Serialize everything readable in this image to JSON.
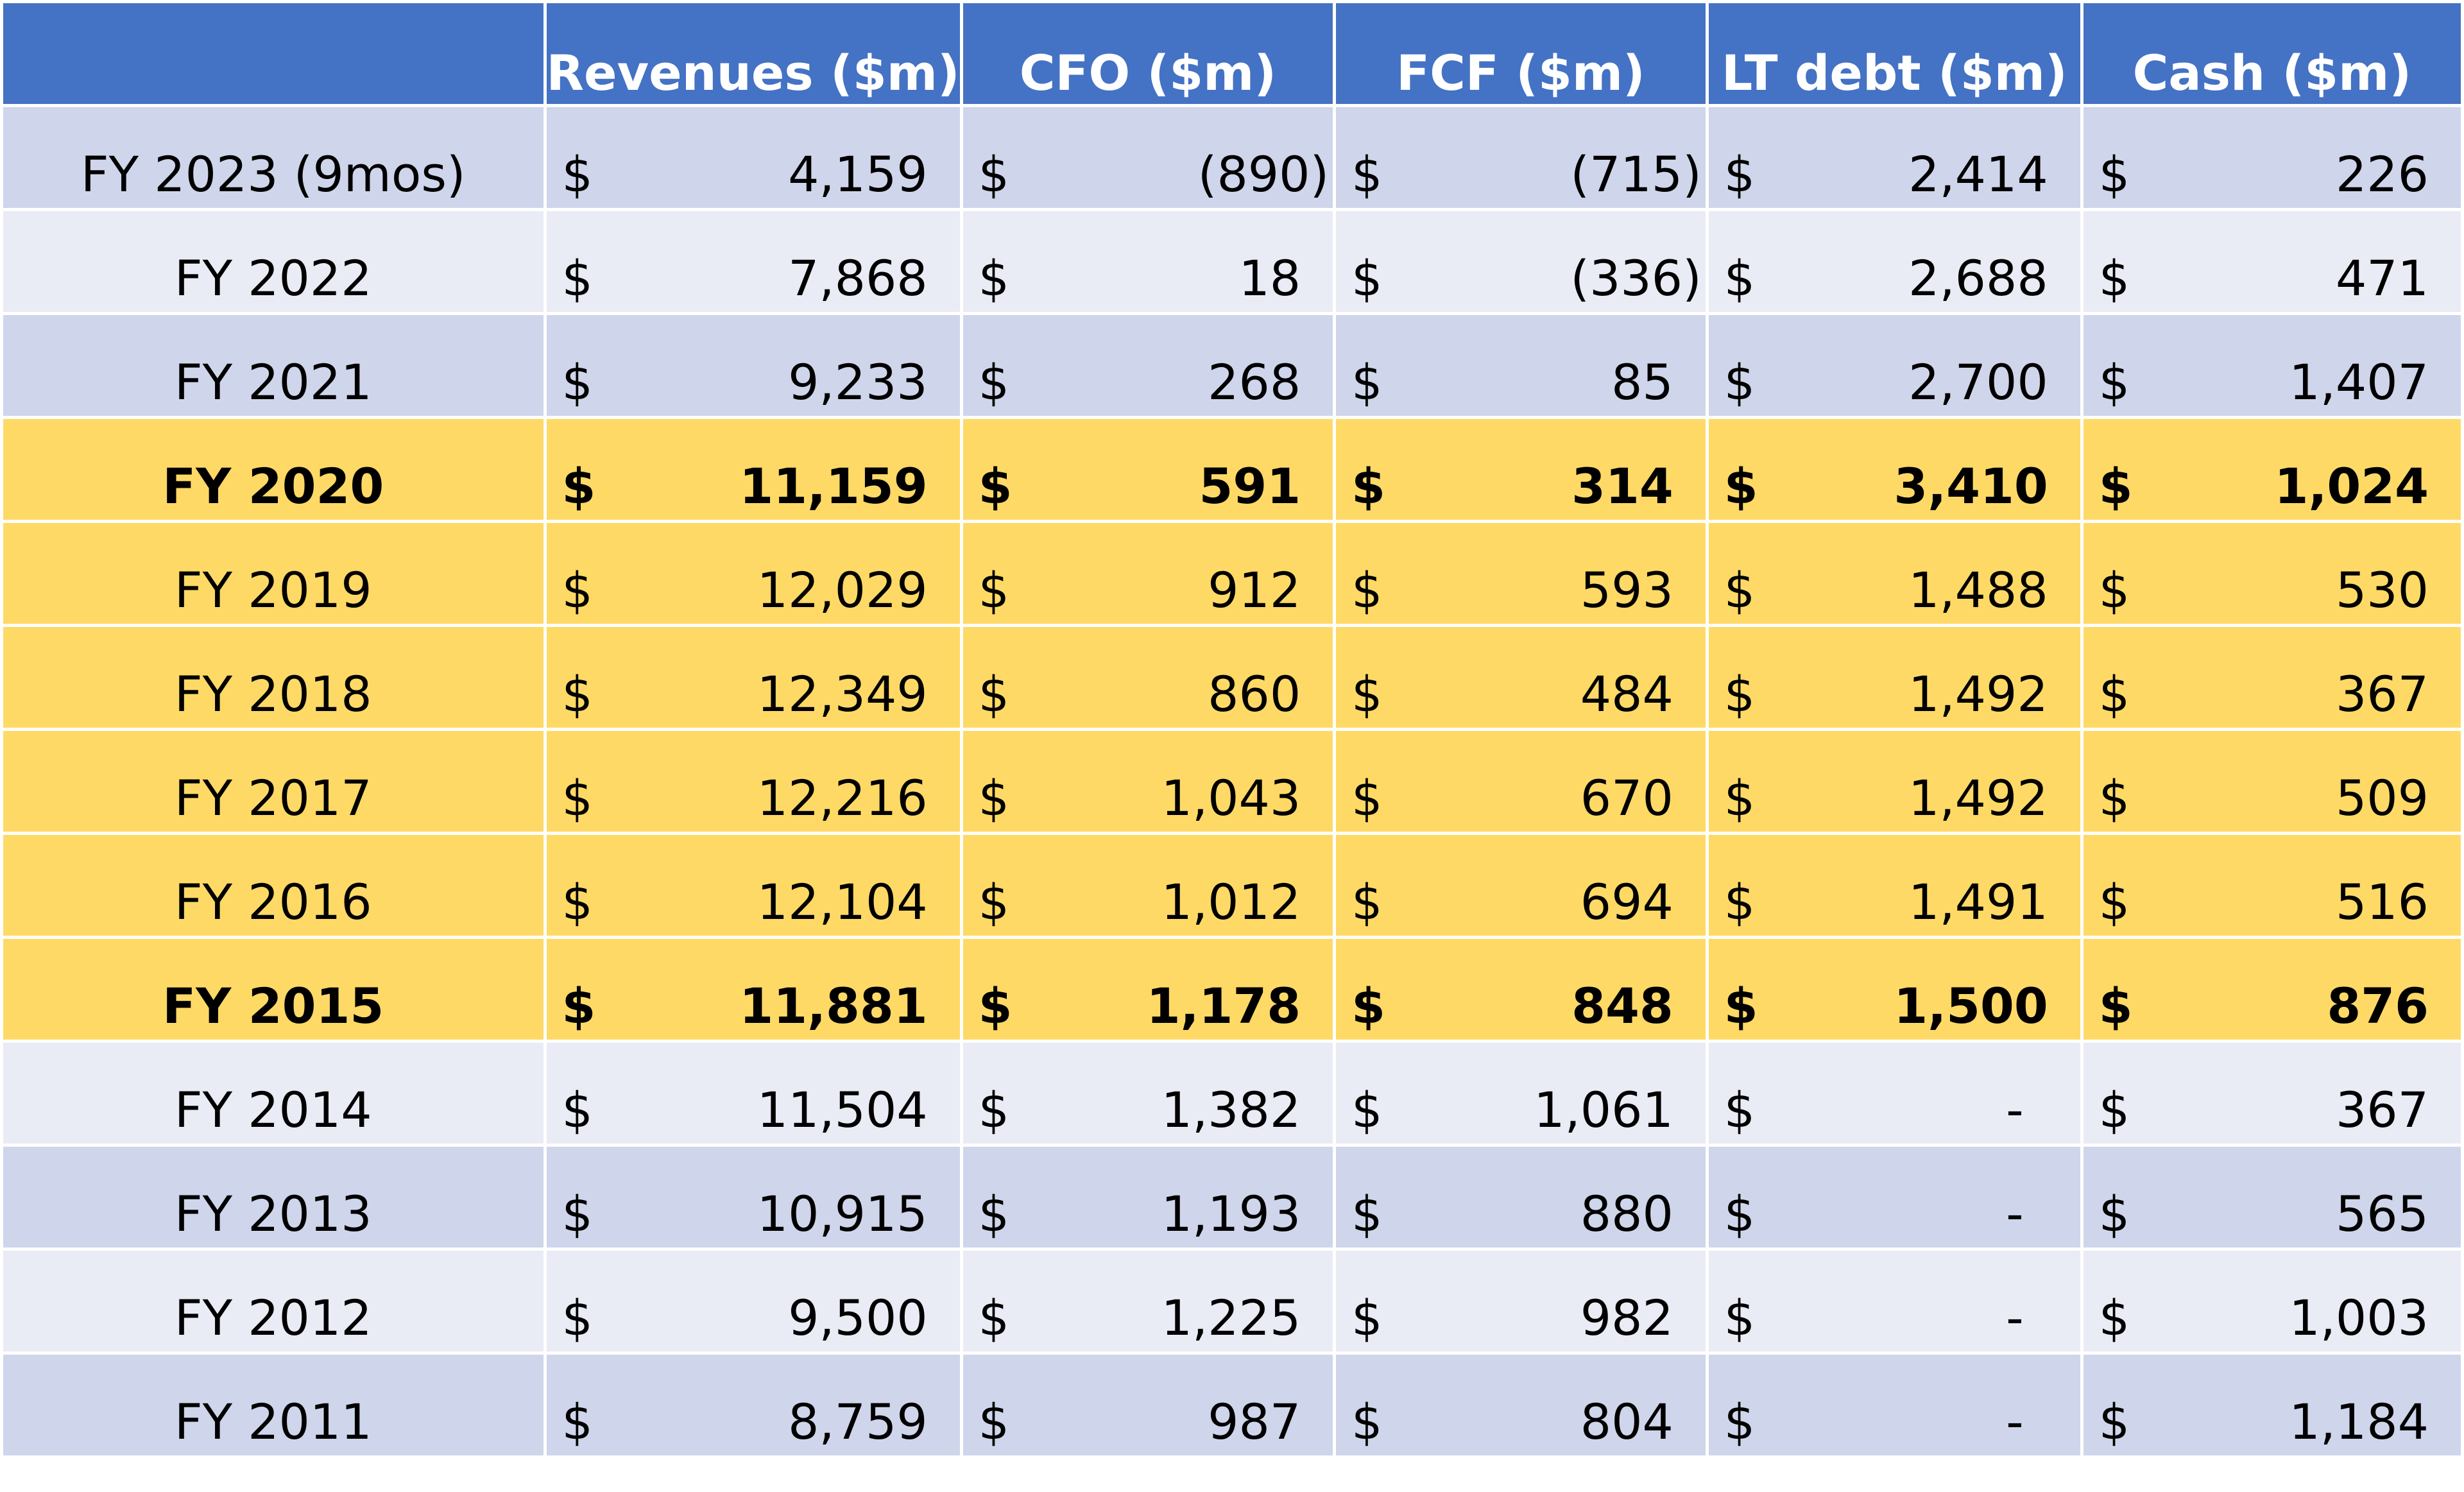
{
  "table": {
    "headers": [
      "",
      "Revenues ($m)",
      "CFO ($m)",
      "FCF ($m)",
      "LT debt ($m)",
      "Cash ($m)"
    ],
    "currency_symbol": "$",
    "rows": [
      {
        "label": "FY 2023 (9mos)",
        "style": "a",
        "bold": false,
        "values": [
          "4,159",
          "(890)",
          "(715)",
          "2,414",
          "226"
        ]
      },
      {
        "label": "FY 2022",
        "style": "b",
        "bold": false,
        "values": [
          "7,868",
          "18",
          "(336)",
          "2,688",
          "471"
        ]
      },
      {
        "label": "FY 2021",
        "style": "a",
        "bold": false,
        "values": [
          "9,233",
          "268",
          "85",
          "2,700",
          "1,407"
        ]
      },
      {
        "label": "FY 2020",
        "style": "hl",
        "bold": true,
        "values": [
          "11,159",
          "591",
          "314",
          "3,410",
          "1,024"
        ]
      },
      {
        "label": "FY 2019",
        "style": "hl",
        "bold": false,
        "values": [
          "12,029",
          "912",
          "593",
          "1,488",
          "530"
        ]
      },
      {
        "label": "FY 2018",
        "style": "hl",
        "bold": false,
        "values": [
          "12,349",
          "860",
          "484",
          "1,492",
          "367"
        ]
      },
      {
        "label": "FY 2017",
        "style": "hl",
        "bold": false,
        "values": [
          "12,216",
          "1,043",
          "670",
          "1,492",
          "509"
        ]
      },
      {
        "label": "FY 2016",
        "style": "hl",
        "bold": false,
        "values": [
          "12,104",
          "1,012",
          "694",
          "1,491",
          "516"
        ]
      },
      {
        "label": "FY 2015",
        "style": "hl",
        "bold": true,
        "values": [
          "11,881",
          "1,178",
          "848",
          "1,500",
          "876"
        ]
      },
      {
        "label": "FY 2014",
        "style": "b",
        "bold": false,
        "values": [
          "11,504",
          "1,382",
          "1,061",
          "-",
          "367"
        ]
      },
      {
        "label": "FY 2013",
        "style": "a",
        "bold": false,
        "values": [
          "10,915",
          "1,193",
          "880",
          "-",
          "565"
        ]
      },
      {
        "label": "FY 2012",
        "style": "b",
        "bold": false,
        "values": [
          "9,500",
          "1,225",
          "982",
          "-",
          "1,003"
        ]
      },
      {
        "label": "FY 2011",
        "style": "a",
        "bold": false,
        "values": [
          "8,759",
          "987",
          "804",
          "-",
          "1,184"
        ]
      }
    ]
  },
  "colors": {
    "header": "#4472C4",
    "row_dark": "#CFD5EA",
    "row_light": "#E9EBF5",
    "highlight": "#FFD966"
  }
}
